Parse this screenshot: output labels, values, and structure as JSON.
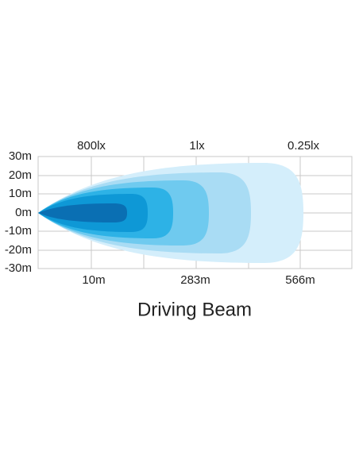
{
  "title": "Driving Beam",
  "top_labels": [
    "800lx",
    "1lx",
    "0.25lx"
  ],
  "y_axis": {
    "labels": [
      "30m",
      "20m",
      "10m",
      "0m",
      "-10m",
      "-20m",
      "-30m"
    ]
  },
  "x_axis": {
    "labels": [
      "10m",
      "283m",
      "566m"
    ]
  }
}
